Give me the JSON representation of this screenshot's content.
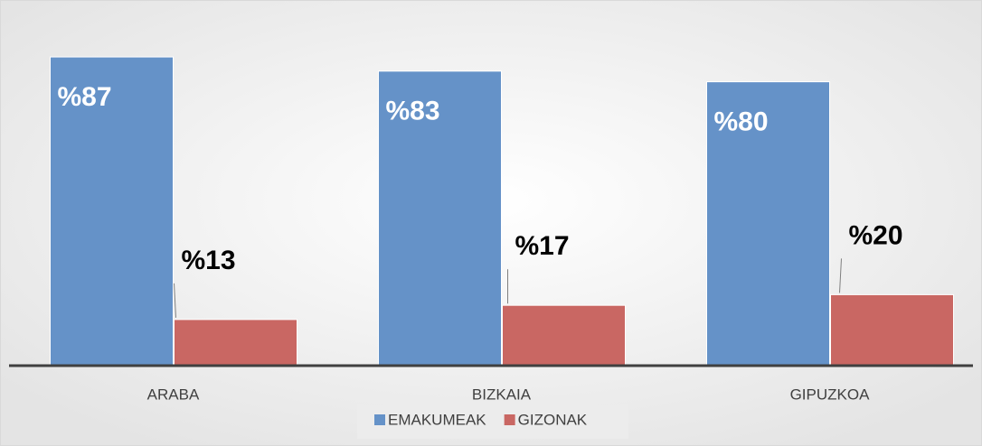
{
  "chart_data": {
    "type": "bar",
    "categories": [
      "ARABA",
      "BIZKAIA",
      "GIPUZKOA"
    ],
    "series": [
      {
        "name": "EMAKUMEAK",
        "color": "#6592c8",
        "values": [
          87,
          83,
          80
        ],
        "value_labels": [
          "%87",
          "%83",
          "%80"
        ]
      },
      {
        "name": "GIZONAK",
        "color": "#c96763",
        "values": [
          13,
          17,
          20
        ],
        "value_labels": [
          "%13",
          "%17",
          "%20"
        ]
      }
    ],
    "ylim": [
      0,
      100
    ],
    "grid": false,
    "legend": "bottom"
  }
}
